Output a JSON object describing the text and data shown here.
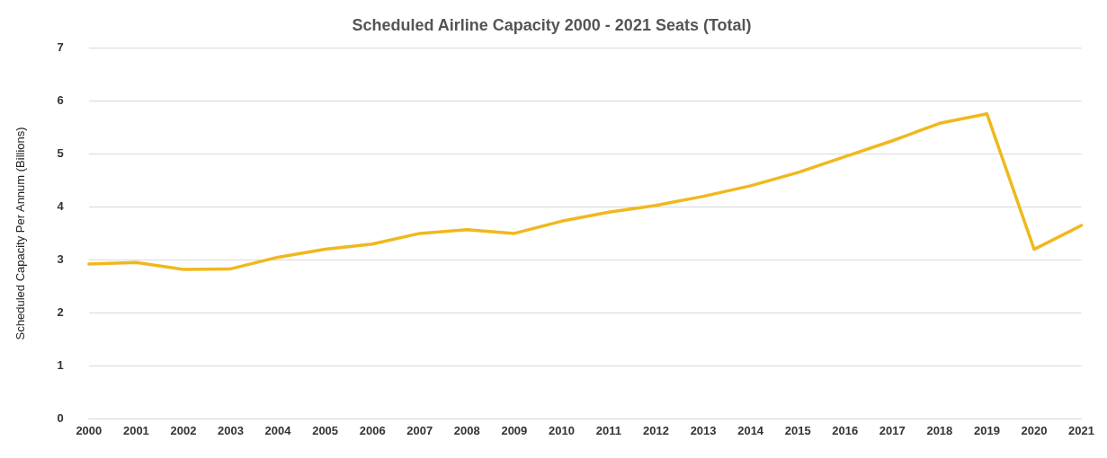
{
  "chart_data": {
    "type": "line",
    "title": "Scheduled Airline Capacity 2000 - 2021 Seats (Total)",
    "ylabel": "Scheduled Capacity Per Annum (Billions)",
    "categories": [
      "2000",
      "2001",
      "2002",
      "2003",
      "2004",
      "2005",
      "2006",
      "2007",
      "2008",
      "2009",
      "2010",
      "2011",
      "2012",
      "2013",
      "2014",
      "2015",
      "2016",
      "2017",
      "2018",
      "2019",
      "2020",
      "2021"
    ],
    "series": [
      {
        "color": "#f0b81c",
        "values": [
          2.92,
          2.95,
          2.82,
          2.83,
          3.05,
          3.2,
          3.3,
          3.5,
          3.57,
          3.5,
          3.73,
          3.9,
          4.03,
          4.2,
          4.4,
          4.65,
          4.95,
          5.25,
          5.58,
          5.76,
          3.2,
          3.65
        ]
      }
    ],
    "ylim": [
      0,
      7
    ],
    "yticks": [
      0,
      1,
      2,
      3,
      4,
      5,
      6,
      7
    ],
    "grid": "y",
    "legend": false,
    "marker": "none",
    "line_style": "solid"
  }
}
